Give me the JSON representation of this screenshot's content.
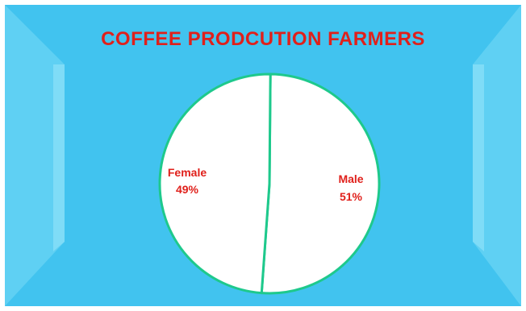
{
  "chart_data": {
    "type": "pie",
    "title": "COFFEE PRODCUTION FARMERS",
    "slices": [
      {
        "label": "Male",
        "value": 51,
        "value_label": "51%"
      },
      {
        "label": "Female",
        "value": 49,
        "value_label": "49%"
      }
    ],
    "colors": {
      "background": "#41c3ef",
      "bevel_light": "#7fdcf7",
      "bevel_mid": "#5fd0f3",
      "bevel_dark": "#2fb3e2",
      "slice_fill": "#ffffff",
      "slice_stroke": "#1ec98c",
      "title": "#e0201b",
      "labels": "#e0201b"
    },
    "legend": "none",
    "grid": false
  }
}
